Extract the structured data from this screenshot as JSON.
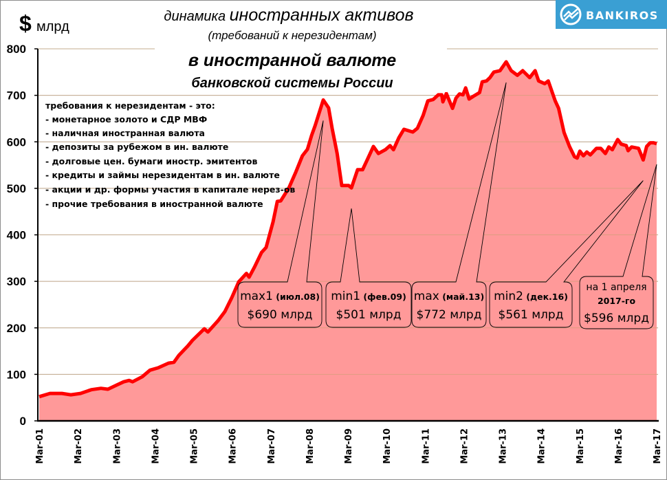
{
  "header": {
    "currency_symbol": "$",
    "unit": "млрд",
    "title_line1_small": "динамика ",
    "title_line1_large": "иностранных активов",
    "title_line2": "(требований к нерезидентам)",
    "title_line3": "в иностранной валюте",
    "title_line4": "банковской системы России"
  },
  "logo": {
    "text": "BANKIROS",
    "color": "#3a9fd3"
  },
  "legend_box": {
    "heading": "требования к нерезидентам - это:",
    "items": [
      "- монетарное золото и СДР МВФ",
      "- наличная иностранная валюта",
      "- депозиты за рубежом в ин. валюте",
      "- долговые цен. бумаги иностр. эмитентов",
      "- кредиты и займы нерезидентам в ин. валюте",
      "- акции и др. формы участия в капитале нерез-ов",
      "- прочие требования в иностранной валюте"
    ]
  },
  "callouts": [
    {
      "title": "max1",
      "period": " (июл.08)",
      "value_label": "$690 млрд",
      "point": {
        "x": 2008.53,
        "value": 690
      }
    },
    {
      "title": "min1",
      "period": " (фев.09)",
      "value_label": "$501 млрд",
      "point": {
        "x": 2009.26,
        "value": 501
      }
    },
    {
      "title": "max",
      "period": " (май.13)",
      "value_label": "$772 млрд",
      "point": {
        "x": 2013.27,
        "value": 772
      }
    },
    {
      "title": "min2",
      "period": " (дек.16)",
      "value_label": "$561 млрд",
      "point": {
        "x": 2016.82,
        "value": 561
      }
    },
    {
      "title": "на 1 апреля",
      "period": "2017-го",
      "value_label": "$596 млрд",
      "point": {
        "x": 2017.17,
        "value": 596
      }
    }
  ],
  "colors": {
    "line": "#ff0000",
    "area": "#ff9999",
    "grid": "#bdbdbd"
  },
  "chart_data": {
    "type": "area",
    "title": "динамика иностранных активов (требований к нерезидентам) в иностранной валюте банковской системы России",
    "ylabel": "$ млрд",
    "xlabel": "",
    "ylim": [
      0,
      800
    ],
    "yticks": [
      0,
      100,
      200,
      300,
      400,
      500,
      600,
      700,
      800
    ],
    "xtick_labels": [
      "Mar-01",
      "Mar-02",
      "Mar-03",
      "Mar-04",
      "Mar-05",
      "Mar-06",
      "Mar-07",
      "Mar-08",
      "Mar-09",
      "Mar-10",
      "Mar-11",
      "Mar-12",
      "Mar-13",
      "Mar-14",
      "Mar-15",
      "Mar-16",
      "Mar-17"
    ],
    "xlim": [
      2001.17,
      2017.17
    ],
    "grid": true,
    "series": [
      {
        "name": "иностранные активы, $ млрд",
        "x": [
          2001.17,
          2001.45,
          2001.76,
          2001.99,
          2002.24,
          2002.52,
          2002.77,
          2002.95,
          2003.18,
          2003.36,
          2003.5,
          2003.59,
          2003.84,
          2004.04,
          2004.25,
          2004.52,
          2004.66,
          2004.79,
          2005.02,
          2005.14,
          2005.45,
          2005.54,
          2005.8,
          2005.98,
          2006.16,
          2006.34,
          2006.54,
          2006.61,
          2006.75,
          2006.93,
          2007.05,
          2007.23,
          2007.34,
          2007.43,
          2007.64,
          2007.82,
          2007.99,
          2008.12,
          2008.23,
          2008.32,
          2008.53,
          2008.67,
          2008.76,
          2008.89,
          2009.01,
          2009.19,
          2009.26,
          2009.42,
          2009.55,
          2009.69,
          2009.83,
          2009.96,
          2010.14,
          2010.26,
          2010.35,
          2010.49,
          2010.62,
          2010.85,
          2010.97,
          2011.12,
          2011.24,
          2011.38,
          2011.51,
          2011.6,
          2011.63,
          2011.72,
          2011.88,
          2011.97,
          2012.06,
          2012.15,
          2012.22,
          2012.31,
          2012.42,
          2012.58,
          2012.65,
          2012.76,
          2012.85,
          2012.95,
          2013.11,
          2013.27,
          2013.4,
          2013.56,
          2013.7,
          2013.88,
          2014.02,
          2014.11,
          2014.27,
          2014.36,
          2014.54,
          2014.63,
          2014.77,
          2014.91,
          2015.04,
          2015.11,
          2015.18,
          2015.27,
          2015.36,
          2015.45,
          2015.61,
          2015.72,
          2015.84,
          2015.93,
          2016.02,
          2016.16,
          2016.25,
          2016.38,
          2016.43,
          2016.52,
          2016.7,
          2016.82,
          2016.91,
          2017.0,
          2017.09,
          2017.17
        ],
        "values": [
          52,
          59,
          59,
          56,
          59,
          67,
          70,
          68,
          77,
          84,
          87,
          84,
          95,
          109,
          114,
          124,
          126,
          141,
          161,
          173,
          198,
          191,
          215,
          235,
          265,
          299,
          317,
          309,
          331,
          362,
          373,
          428,
          472,
          473,
          501,
          535,
          570,
          584,
          614,
          635,
          690,
          673,
          629,
          575,
          506,
          506,
          501,
          540,
          540,
          565,
          590,
          575,
          583,
          592,
          583,
          609,
          627,
          621,
          629,
          657,
          688,
          691,
          701,
          701,
          686,
          704,
          672,
          694,
          703,
          701,
          716,
          692,
          698,
          706,
          729,
          731,
          738,
          750,
          753,
          772,
          753,
          743,
          753,
          738,
          753,
          731,
          725,
          731,
          688,
          672,
          620,
          590,
          568,
          565,
          580,
          570,
          578,
          572,
          586,
          586,
          575,
          589,
          583,
          605,
          595,
          592,
          581,
          589,
          586,
          561,
          590,
          598,
          598,
          596
        ]
      }
    ]
  }
}
